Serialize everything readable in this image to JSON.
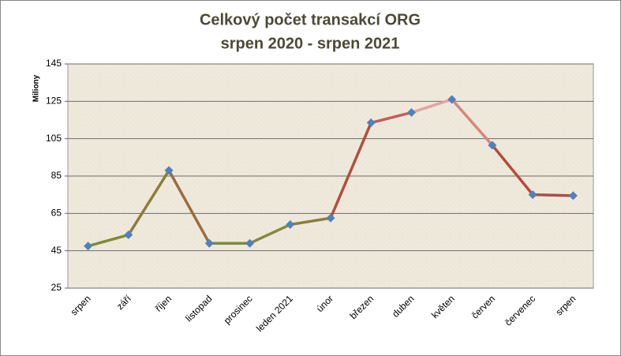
{
  "chart_data": {
    "type": "line",
    "title": "Celkový počet transakcí ORG",
    "subtitle": "srpen 2020 - srpen 2021",
    "y_label": "Miliony",
    "categories": [
      "srpen",
      "září",
      "říjen",
      "listopad",
      "prosinec",
      "leden 2021",
      "únor",
      "březen",
      "duben",
      "květen",
      "červen",
      "červenec",
      "srpen"
    ],
    "values": [
      47.5,
      53.5,
      88,
      49,
      49,
      59,
      62.5,
      113.5,
      119,
      126,
      101.5,
      75,
      74.5
    ],
    "marker_color": "#4f81bd",
    "segment_colors": [
      "#7f8a3a",
      "#8c7d3a",
      "#9a6c40",
      "#7f8a3a",
      "#838a3c",
      "#8a7d3c",
      "#b24f3c",
      "#c45e5a",
      "#e2a4a2",
      "#d58680",
      "#b84a3e",
      "#a5504a"
    ],
    "ylim": [
      25,
      145
    ],
    "yticks": [
      25,
      45,
      65,
      85,
      105,
      125,
      145
    ],
    "grid": true
  }
}
